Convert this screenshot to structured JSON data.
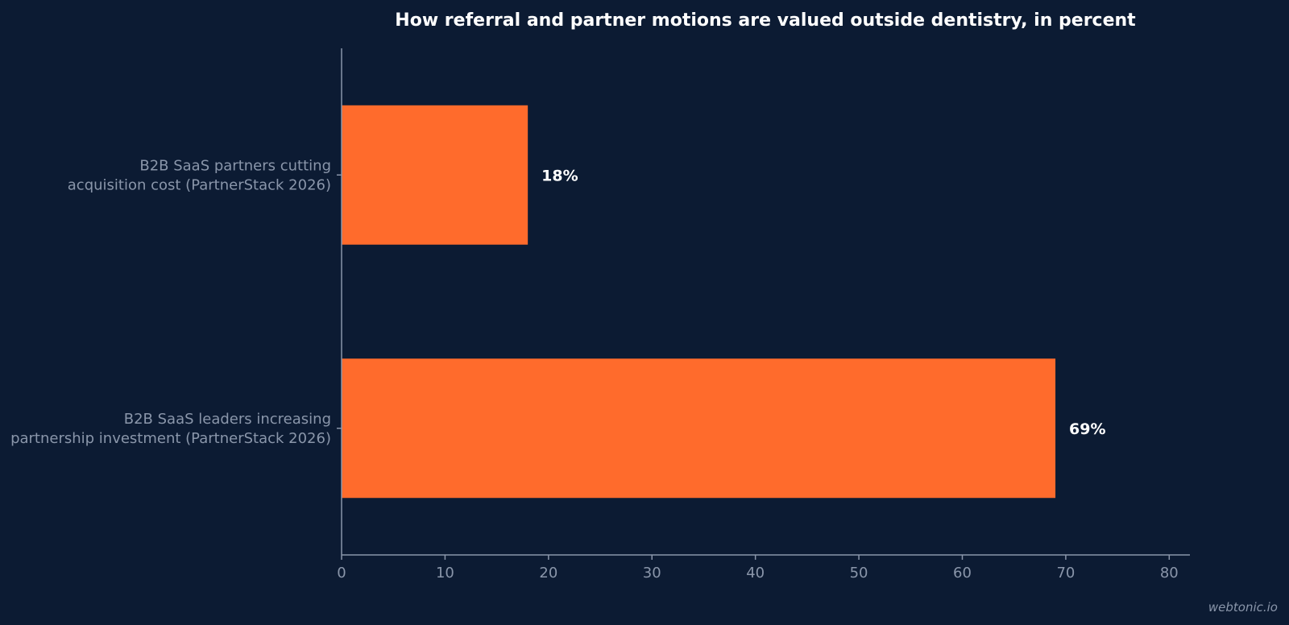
{
  "chart_data": {
    "type": "bar",
    "orientation": "horizontal",
    "title": "How referral and partner motions are valued outside dentistry, in percent",
    "categories": [
      [
        "B2B SaaS partners cutting",
        "acquisition cost (PartnerStack 2026)"
      ],
      [
        "B2B SaaS leaders increasing",
        "partnership investment (PartnerStack 2026)"
      ]
    ],
    "values": [
      18,
      69
    ],
    "data_labels": [
      "18%",
      "69%"
    ],
    "xlim": [
      0,
      82
    ],
    "xticks": [
      0,
      10,
      20,
      30,
      40,
      50,
      60,
      70,
      80
    ],
    "xlabel": "",
    "ylabel": "",
    "grid": false,
    "colors": {
      "bar": "#ff6b2c",
      "background": "#0c1b33",
      "axis": "#8a96aa",
      "text": "#ffffff"
    }
  },
  "watermark": "webtonic.io"
}
